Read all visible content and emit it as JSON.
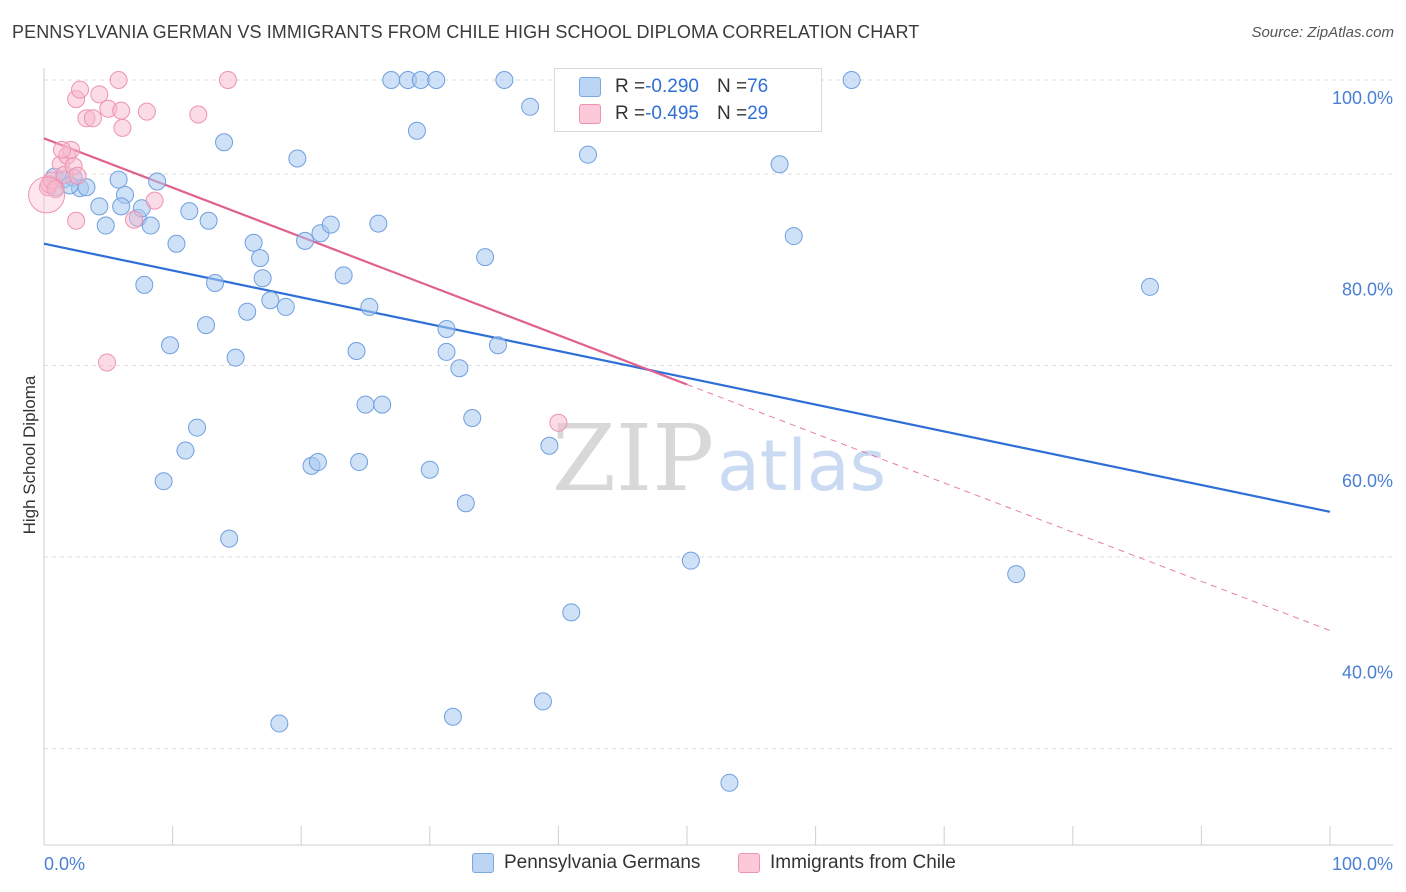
{
  "title": "PENNSYLVANIA GERMAN VS IMMIGRANTS FROM CHILE HIGH SCHOOL DIPLOMA CORRELATION CHART",
  "source": "Source: ZipAtlas.com",
  "watermark": {
    "zip": "ZIP",
    "atlas": "atlas"
  },
  "colors": {
    "blue_fill": "#a8c8f0",
    "blue_stroke": "#6f9fe0",
    "blue_line": "#2f6fd6",
    "pink_fill": "#f8b8cc",
    "pink_stroke": "#ee93b1",
    "pink_line": "#e0608e",
    "grid": "#dddddd",
    "tick_text": "#4a7fd4"
  },
  "legend": {
    "series1": {
      "r_label": "R = ",
      "r_value": "-0.290",
      "n_label": "N = ",
      "n_value": "76"
    },
    "series2": {
      "r_label": "R = ",
      "r_value": "-0.495",
      "n_label": "N = ",
      "n_value": "29"
    }
  },
  "chart_data": {
    "type": "scatter",
    "title": "PENNSYLVANIA GERMAN VS IMMIGRANTS FROM CHILE HIGH SCHOOL DIPLOMA CORRELATION CHART",
    "xlabel": "",
    "ylabel": "High School Diploma",
    "xlim": [
      0,
      100
    ],
    "ylim": [
      20,
      102
    ],
    "x_tick_labels": [
      "0.0%",
      "100.0%"
    ],
    "y_ticks": [
      100,
      80,
      60,
      40
    ],
    "y_tick_labels": [
      "100.0%",
      "80.0%",
      "60.0%",
      "40.0%"
    ],
    "legend_position": "bottom",
    "series": [
      {
        "name": "Pennsylvania Germans",
        "r": -0.29,
        "n": 76,
        "trend": {
          "x": [
            0,
            100
          ],
          "y": [
            82.9,
            54.9
          ]
        },
        "points": [
          [
            0.8,
            89.9
          ],
          [
            0.9,
            88.8
          ],
          [
            1.5,
            89.6
          ],
          [
            2.3,
            89.8
          ],
          [
            2.8,
            88.7
          ],
          [
            3.3,
            88.8
          ],
          [
            5.8,
            89.6
          ],
          [
            4.3,
            86.8
          ],
          [
            4.8,
            84.8
          ],
          [
            6.3,
            88.0
          ],
          [
            7.3,
            85.6
          ],
          [
            7.6,
            86.6
          ],
          [
            8.3,
            84.8
          ],
          [
            8.8,
            89.4
          ],
          [
            7.8,
            78.6
          ],
          [
            10.3,
            82.9
          ],
          [
            11.3,
            86.3
          ],
          [
            12.8,
            85.3
          ],
          [
            13.3,
            78.8
          ],
          [
            14.0,
            93.5
          ],
          [
            12.6,
            74.4
          ],
          [
            9.8,
            72.3
          ],
          [
            14.9,
            71.0
          ],
          [
            15.8,
            75.8
          ],
          [
            16.3,
            83.0
          ],
          [
            16.8,
            81.4
          ],
          [
            17.0,
            79.3
          ],
          [
            17.6,
            77.0
          ],
          [
            18.8,
            76.3
          ],
          [
            19.7,
            91.8
          ],
          [
            20.3,
            83.2
          ],
          [
            21.5,
            84.0
          ],
          [
            22.3,
            84.9
          ],
          [
            23.3,
            79.6
          ],
          [
            24.3,
            71.7
          ],
          [
            25.3,
            76.3
          ],
          [
            25.0,
            66.1
          ],
          [
            26.0,
            85.0
          ],
          [
            26.3,
            66.1
          ],
          [
            27.0,
            100.0
          ],
          [
            28.3,
            100.0
          ],
          [
            29.3,
            100.0
          ],
          [
            30.5,
            100.0
          ],
          [
            29.0,
            94.7
          ],
          [
            31.3,
            71.6
          ],
          [
            31.3,
            74.0
          ],
          [
            32.3,
            69.9
          ],
          [
            33.3,
            64.7
          ],
          [
            34.3,
            81.5
          ],
          [
            35.3,
            72.3
          ],
          [
            37.8,
            97.2
          ],
          [
            39.3,
            61.8
          ],
          [
            42.3,
            92.2
          ],
          [
            41.0,
            44.4
          ],
          [
            50.3,
            49.8
          ],
          [
            53.3,
            26.6
          ],
          [
            57.2,
            91.2
          ],
          [
            58.3,
            83.7
          ],
          [
            62.8,
            100.0
          ],
          [
            75.6,
            48.4
          ],
          [
            86.0,
            78.4
          ],
          [
            18.3,
            32.8
          ],
          [
            31.8,
            33.5
          ],
          [
            38.8,
            35.1
          ],
          [
            11.0,
            61.3
          ],
          [
            11.9,
            63.7
          ],
          [
            9.3,
            58.1
          ],
          [
            14.4,
            52.1
          ],
          [
            20.8,
            59.7
          ],
          [
            21.3,
            60.1
          ],
          [
            24.5,
            60.1
          ],
          [
            30.0,
            59.3
          ],
          [
            32.8,
            55.8
          ],
          [
            35.8,
            100.0
          ],
          [
            6.0,
            86.8
          ],
          [
            2.0,
            89.0
          ]
        ]
      },
      {
        "name": "Immigrants from Chile",
        "r": -0.495,
        "n": 29,
        "trend": {
          "x": [
            0,
            50
          ],
          "y": [
            93.9,
            68.2
          ]
        },
        "trend_dashed": {
          "x": [
            50,
            100
          ],
          "y": [
            68.2,
            42.5
          ]
        },
        "points": [
          [
            0.3,
            88.8
          ],
          [
            0.4,
            89.1
          ],
          [
            0.6,
            89.5
          ],
          [
            0.9,
            88.6
          ],
          [
            1.3,
            91.2
          ],
          [
            1.6,
            90.1
          ],
          [
            1.8,
            92.1
          ],
          [
            2.1,
            92.7
          ],
          [
            2.3,
            91.0
          ],
          [
            2.6,
            90.0
          ],
          [
            1.4,
            92.7
          ],
          [
            2.5,
            85.3
          ],
          [
            2.5,
            98.0
          ],
          [
            2.8,
            99.0
          ],
          [
            3.3,
            96.0
          ],
          [
            3.8,
            96.0
          ],
          [
            4.3,
            98.5
          ],
          [
            5.0,
            97.0
          ],
          [
            5.8,
            100.0
          ],
          [
            6.0,
            96.8
          ],
          [
            6.1,
            95.0
          ],
          [
            7.0,
            85.4
          ],
          [
            8.0,
            96.7
          ],
          [
            8.6,
            87.4
          ],
          [
            12.0,
            96.4
          ],
          [
            14.3,
            100.0
          ],
          [
            4.9,
            70.5
          ],
          [
            40.0,
            64.2
          ],
          [
            0.2,
            88.0
          ]
        ]
      }
    ]
  }
}
